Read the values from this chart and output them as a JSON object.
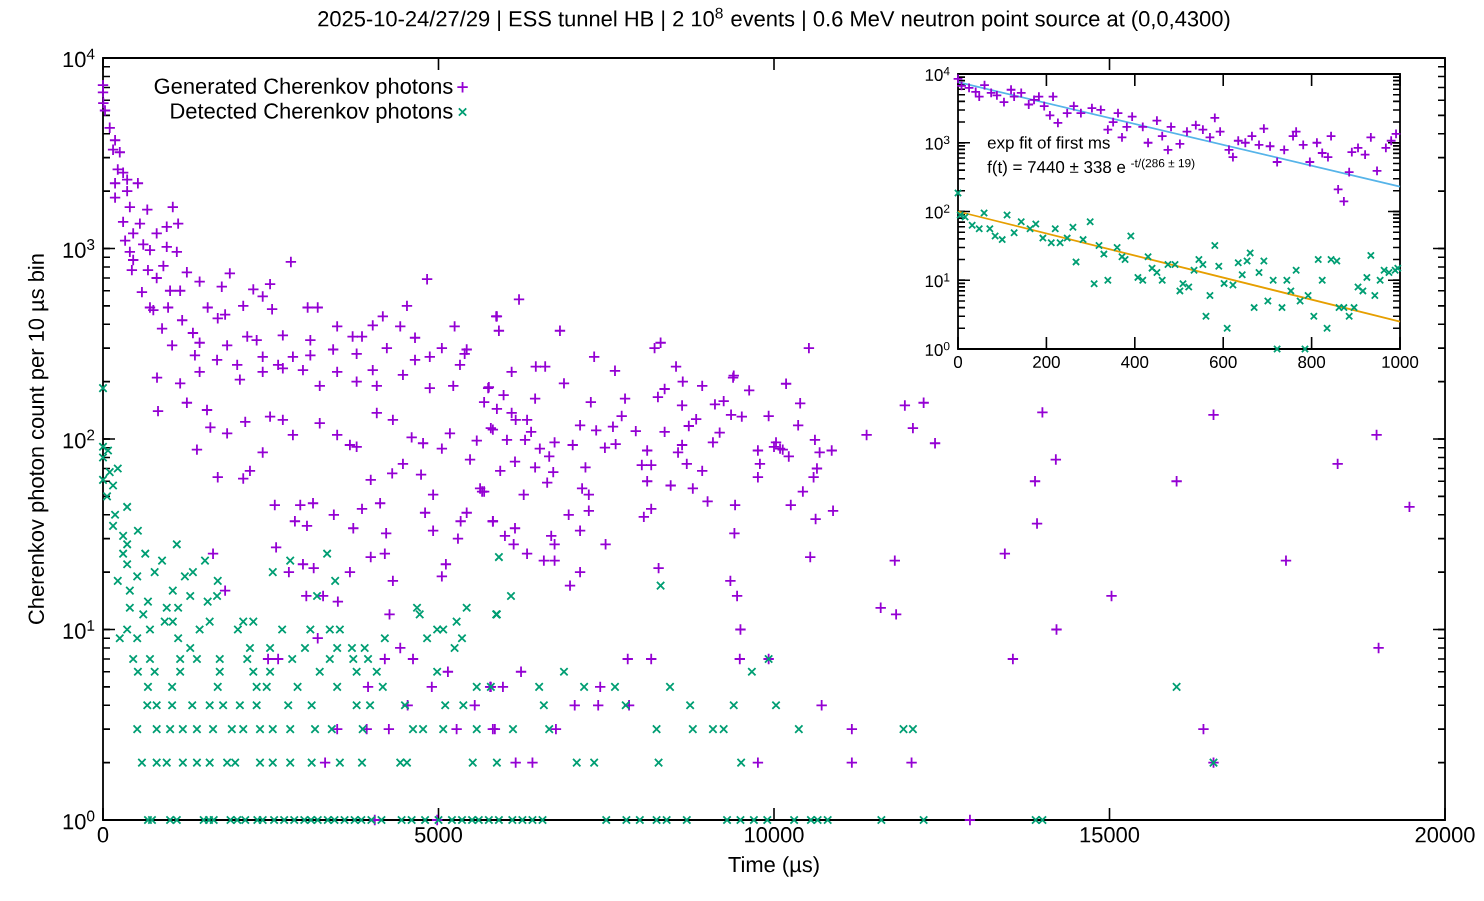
{
  "chart_data": [
    {
      "type": "scatter",
      "title": "2025-10-24/27/29 | ESS tunnel HB | 2 10$^{8}$ events | 0.6 MeV neutron point source at (0,0,4300)",
      "xlabel": "Time (µs)",
      "ylabel": "Cherenkov photon count per 10 µs bin",
      "log": "y",
      "legend": "top left",
      "xlim": [
        0,
        20000
      ],
      "ylim": [
        1,
        10000
      ],
      "xticks": [
        0,
        5000,
        10000,
        15000,
        20000
      ],
      "yticks": [
        {
          "value": 1,
          "label": "10$^{0}$"
        },
        {
          "value": 10,
          "label": "10$^{1}$"
        },
        {
          "value": 100,
          "label": "10$^{2}$"
        },
        {
          "value": 1000,
          "label": "10$^{3}$"
        },
        {
          "value": 10000,
          "label": "10$^{4}$"
        }
      ],
      "series": [
        {
          "name": "Generated Cherenkov photons",
          "color": "#9400d3",
          "marker": "plus",
          "x": [
            0,
            0,
            5,
            30,
            100,
            180,
            150,
            250,
            220,
            300,
            180,
            360,
            520,
            180,
            360,
            400,
            1040,
            660,
            1120,
            300,
            550,
            450,
            950,
            330,
            600,
            800,
            950,
            400,
            1100,
            700,
            450,
            430,
            670,
            900,
            2800,
            1250,
            800,
            1890,
            1440,
            580,
            1000,
            1150,
            2240,
            2490,
            4830,
            700,
            970,
            1560,
            2090,
            3050,
            3200,
            4530,
            750,
            2380,
            1770,
            1180,
            1710,
            2520,
            4170,
            880,
            1340,
            1820,
            2150,
            2290,
            2680,
            3090,
            3490,
            3720,
            3860,
            4020,
            4430,
            4650,
            5240,
            5870,
            1030,
            1440,
            1850,
            4230,
            5050,
            5420,
            1370,
            1700,
            2000,
            2380,
            2610,
            2830,
            3090,
            3430,
            3780,
            4020,
            4650,
            4870,
            5320,
            5390,
            1440,
            2040,
            2380,
            2680,
            2980,
            3230,
            3490,
            3780,
            4080,
            4470,
            4870,
            5220,
            5740,
            805,
            820,
            1150,
            1250,
            1550,
            1600,
            1850,
            2120,
            2490,
            2680,
            2830,
            3230,
            3490,
            3680,
            3780,
            4080,
            4320,
            4600,
            4770,
            5050,
            5170,
            5570,
            5810,
            1400,
            2380,
            1710,
            2090,
            2190,
            2560,
            2940,
            3130,
            2860,
            3040,
            2580,
            2770,
            2980,
            3140,
            3030,
            3280,
            3500,
            3440,
            3680,
            3860,
            3730,
            3990,
            3990,
            4200,
            4220,
            4130,
            4320,
            4310,
            4470,
            4740,
            4800,
            4920,
            4920,
            5110,
            5050,
            5290,
            5330,
            5420,
            5650,
            5810,
            5990,
            1640,
            1820,
            4270,
            4430,
            4620,
            4200,
            5140,
            3200,
            2460,
            2610,
            3950,
            4900,
            5770,
            5960,
            4540,
            5540,
            3490,
            3930,
            4260,
            5270,
            5810,
            3310,
            4050,
            4980,
            5860,
            5900,
            6200,
            6810,
            8220,
            8310,
            10520,
            7320,
            6090,
            6450,
            6590,
            7630,
            6870,
            8540,
            8640,
            9400,
            10180,
            9630,
            8930,
            5750,
            8370,
            5970,
            6440,
            7780,
            8270,
            5680,
            7270,
            10390,
            9120,
            9250,
            5870,
            8630,
            6090,
            7730,
            9360,
            9920,
            6150,
            6320,
            8840,
            9520,
            7110,
            7600,
            8730,
            10360,
            5780,
            6380,
            7350,
            7940,
            8370,
            9190,
            6020,
            6290,
            6730,
            7000,
            7640,
            8630,
            9090,
            10000,
            10610,
            6510,
            8110,
            9760,
            10090,
            10860,
            6650,
            8570,
            10220,
            10130,
            10030,
            10680,
            10640,
            6140,
            8030,
            8170,
            8700,
            9790,
            6440,
            7190,
            5920,
            6710,
            8930,
            8110,
            8460,
            8790,
            9760,
            10590,
            6620,
            7140,
            7240,
            5680,
            6270,
            9010,
            9420,
            10430,
            10250,
            6940,
            7240,
            8060,
            8170,
            10620,
            10880,
            5810,
            6140,
            7110,
            6680,
            6120,
            6730,
            7490,
            6320,
            6570,
            6730,
            7110,
            6960,
            8280,
            10540,
            9350,
            9450,
            9500,
            9490,
            9410,
            7820,
            8170,
            7840,
            9920,
            6230,
            5780,
            7410,
            7030,
            7380,
            10710,
            5840,
            6750,
            11160,
            6150,
            6400,
            9760,
            11160,
            12050,
            11950,
            12230,
            14000,
            16550,
            18980,
            18400,
            14200,
            11380,
            12400,
            12070,
            13890,
            13920,
            16000,
            19470,
            13440,
            17630,
            11800,
            15030,
            11590,
            11820,
            14210,
            19010,
            13560,
            16400,
            16550,
            12920,
            9390,
            7480,
            5470,
            5620
          ],
          "values": [
            7200,
            6600,
            5800,
            5300,
            4300,
            3700,
            3300,
            3200,
            2600,
            2500,
            2200,
            2300,
            2200,
            1850,
            2000,
            1650,
            1650,
            1600,
            1350,
            1380,
            1350,
            1200,
            1300,
            1100,
            1050,
            1200,
            1020,
            960,
            960,
            980,
            870,
            770,
            770,
            810,
            850,
            750,
            700,
            740,
            670,
            590,
            600,
            600,
            610,
            650,
            690,
            490,
            490,
            490,
            500,
            490,
            490,
            500,
            475,
            560,
            630,
            420,
            430,
            480,
            440,
            380,
            360,
            450,
            345,
            330,
            350,
            330,
            390,
            345,
            345,
            395,
            390,
            340,
            390,
            440,
            310,
            320,
            310,
            300,
            300,
            295,
            275,
            260,
            245,
            270,
            245,
            270,
            275,
            295,
            280,
            230,
            260,
            270,
            245,
            280,
            225,
            205,
            225,
            235,
            230,
            190,
            225,
            200,
            190,
            217,
            185,
            190,
            185,
            210,
            140,
            196,
            155,
            142,
            115,
            107,
            123,
            131,
            126,
            105,
            121,
            105,
            93,
            91,
            137,
            126,
            102,
            95,
            89,
            107,
            98,
            112,
            88,
            85,
            63,
            62,
            68,
            45,
            45,
            46,
            37,
            35,
            27,
            20,
            22,
            21,
            15,
            15,
            14,
            40,
            20,
            43,
            34,
            61,
            24,
            25,
            32,
            46,
            18,
            66,
            74,
            65,
            41,
            51,
            33,
            22,
            19,
            30,
            37,
            41,
            53,
            37,
            31,
            25,
            16,
            12,
            8,
            7,
            7,
            6,
            9,
            7,
            7,
            5,
            5,
            5,
            5,
            4,
            4,
            3,
            3,
            3,
            3,
            3,
            2,
            1,
            1,
            440,
            370,
            540,
            370,
            300,
            320,
            300,
            270,
            225,
            240,
            240,
            228,
            196,
            240,
            200,
            215,
            195,
            180,
            190,
            187,
            183,
            170,
            163,
            163,
            166,
            156,
            156,
            154,
            152,
            158,
            144,
            150,
            137,
            132,
            134,
            132,
            126,
            126,
            127,
            131,
            118,
            116,
            117,
            118,
            114,
            109,
            111,
            110,
            109,
            108,
            99,
            99,
            96,
            93,
            94,
            93,
            96,
            91,
            99,
            89,
            87,
            87,
            89,
            87,
            81,
            85,
            81,
            88,
            96,
            85,
            70,
            76,
            73,
            73,
            74,
            74,
            71,
            71,
            68,
            67,
            68,
            60,
            57,
            55,
            63,
            63,
            59,
            55,
            51,
            53,
            51,
            47,
            45,
            53,
            45,
            40,
            42,
            39,
            43,
            38,
            42,
            37,
            34,
            33,
            31,
            28,
            28,
            28,
            25,
            23,
            23,
            20,
            17,
            21,
            24,
            18,
            15,
            10,
            7,
            32,
            7,
            7,
            4,
            7,
            6,
            5,
            5,
            4,
            4,
            4,
            3,
            3,
            3,
            2,
            2,
            2,
            2,
            2,
            150,
            155,
            138,
            134,
            105,
            74,
            78,
            105,
            95,
            114,
            60,
            36,
            60,
            44,
            25,
            23,
            23,
            15,
            13,
            12,
            10,
            8,
            7,
            3,
            2,
            1,
            210,
            90,
            78,
            55
          ]
        },
        {
          "name": "Detected Cherenkov photons",
          "color": "#009e73",
          "marker": "cross",
          "x": [
            0,
            0,
            75,
            0,
            100,
            220,
            0,
            150,
            60,
            360,
            180,
            150,
            520,
            300,
            360,
            1100,
            300,
            630,
            360,
            880,
            1520,
            220,
            510,
            770,
            1220,
            1340,
            1710,
            2530,
            2790,
            3340,
            3460,
            400,
            670,
            1040,
            1300,
            1560,
            1700,
            400,
            600,
            950,
            1120,
            3190,
            360,
            250,
            700,
            920,
            1040,
            1590,
            2090,
            2240,
            2670,
            3090,
            3380,
            3530,
            1440,
            2010,
            510,
            1120,
            1300,
            2190,
            2490,
            3010,
            3490,
            3710,
            3900,
            4200,
            4830,
            5350,
            4980,
            5070,
            5270,
            450,
            700,
            1150,
            1400,
            1740,
            2150,
            2820,
            3380,
            3730,
            3950,
            520,
            770,
            1150,
            1740,
            2240,
            2490,
            3230,
            3780,
            4080,
            4980,
            670,
            1030,
            1710,
            2290,
            2440,
            2900,
            3490,
            4170,
            5570,
            660,
            800,
            1030,
            1330,
            1590,
            1790,
            2040,
            2290,
            2760,
            3110,
            3780,
            3980,
            4500,
            5100,
            5370,
            510,
            800,
            1000,
            1190,
            1400,
            1640,
            1920,
            2090,
            2340,
            2530,
            2790,
            3160,
            3410,
            3870,
            4620,
            4770,
            5070,
            5570,
            580,
            800,
            950,
            1190,
            1400,
            1590,
            1850,
            1970,
            2340,
            2530,
            2790,
            3110,
            3530,
            3860,
            4430,
            4530,
            5510,
            5870,
            5420,
            4680,
            5870,
            4720,
            5240,
            5900,
            6080,
            5860,
            8310,
            6870,
            9670,
            9920,
            5780,
            6500,
            7170,
            7630,
            8450,
            6570,
            7790,
            8750,
            9400,
            10030,
            6110,
            6650,
            8250,
            8790,
            9090,
            9250,
            10370,
            11930,
            12070,
            7060,
            7320,
            8280,
            9510,
            16000,
            16550,
            670,
            730,
            1000,
            1100,
            1500,
            1580,
            1650,
            1900,
            2000,
            2120,
            2300,
            2380,
            2550,
            2700,
            2850,
            3000,
            3100,
            3200,
            3350,
            3450,
            3600,
            3750,
            3850,
            4000,
            4150,
            4450,
            4600,
            4800,
            5000,
            5200,
            5350,
            5500,
            5600,
            5750,
            5900,
            6100,
            6250,
            6400,
            6550,
            7500,
            7800,
            8000,
            8250,
            8400,
            8700,
            9300,
            9500,
            9700,
            9900,
            10300,
            10550,
            10650,
            10800,
            11600,
            12230,
            13900,
            14000
          ],
          "values": [
            185,
            91,
            87,
            80,
            67,
            70,
            61,
            57,
            50,
            44,
            40,
            35,
            33,
            31,
            28,
            28,
            25,
            25,
            22,
            23,
            23,
            18,
            19,
            20,
            19,
            20,
            18,
            20,
            23,
            25,
            18,
            16,
            14,
            16,
            15,
            14,
            15,
            13,
            12,
            13,
            13,
            15,
            10,
            9,
            10,
            11,
            11,
            11,
            11,
            11,
            10,
            10,
            10,
            10,
            10,
            10,
            9,
            9,
            8,
            8,
            8,
            8,
            8,
            8,
            8,
            9,
            9,
            9,
            10,
            10,
            11,
            7,
            7,
            7,
            7,
            7,
            7,
            7,
            7,
            7,
            7,
            6,
            6,
            6,
            6,
            6,
            6,
            6,
            6,
            6,
            6,
            5,
            5,
            5,
            5,
            5,
            5,
            5,
            5,
            5,
            4,
            4,
            4,
            4,
            4,
            4,
            4,
            4,
            4,
            4,
            4,
            4,
            4,
            4,
            4,
            3,
            3,
            3,
            3,
            3,
            3,
            3,
            3,
            3,
            3,
            3,
            3,
            3,
            3,
            3,
            3,
            3,
            3,
            2,
            2,
            2,
            2,
            2,
            2,
            2,
            2,
            2,
            2,
            2,
            2,
            2,
            2,
            2,
            2,
            2,
            2,
            13,
            13,
            12,
            12,
            8,
            24,
            15,
            12,
            17,
            6,
            6,
            7,
            5,
            5,
            5,
            5,
            5,
            4,
            4,
            4,
            4,
            4,
            3,
            3,
            3,
            3,
            3,
            3,
            3,
            3,
            3,
            2,
            2,
            2,
            2,
            5,
            2,
            1,
            1,
            1,
            1,
            1,
            1,
            1,
            1,
            1,
            1,
            1,
            1,
            1,
            1,
            1,
            1,
            1,
            1,
            1,
            1,
            1,
            1,
            1,
            1,
            1,
            1,
            1,
            1,
            1,
            1,
            1,
            1,
            1,
            1,
            1,
            1,
            1,
            1,
            1,
            1,
            1,
            1,
            1,
            1,
            1,
            1,
            1,
            1,
            1,
            1,
            1,
            1,
            1,
            1,
            1,
            1,
            1
          ]
        }
      ]
    },
    {
      "type": "scatter",
      "log": "y",
      "annotations": [
        "exp fit of first ms",
        "f(t) = 7440 ± 338 e $^{-t/(286 ± 19)}$"
      ],
      "xlim": [
        0,
        1000
      ],
      "ylim": [
        1,
        10000
      ],
      "xticks": [
        0,
        200,
        400,
        600,
        800,
        1000
      ],
      "yticks": [
        {
          "value": 1,
          "label": "10$^{0}$"
        },
        {
          "value": 10,
          "label": "10$^{1}$"
        },
        {
          "value": 100,
          "label": "10$^{2}$"
        },
        {
          "value": 1000,
          "label": "10$^{3}$"
        },
        {
          "value": 10000,
          "label": "10$^{4}$"
        }
      ],
      "series": [
        {
          "color": "#9400d3",
          "marker": "plus",
          "x": [
            0,
            8,
            25,
            40,
            48,
            60,
            75,
            88,
            104,
            120,
            127,
            143,
            160,
            172,
            183,
            195,
            208,
            215,
            226,
            247,
            262,
            278,
            303,
            323,
            339,
            351,
            362,
            371,
            382,
            394,
            418,
            430,
            450,
            462,
            475,
            482,
            502,
            518,
            538,
            554,
            570,
            581,
            593,
            613,
            622,
            634,
            650,
            665,
            681,
            692,
            706,
            722,
            738,
            758,
            765,
            781,
            796,
            812,
            824,
            837,
            844,
            860,
            873,
            885,
            891,
            905,
            921,
            934,
            948,
            968,
            980,
            991
          ],
          "values": [
            8500,
            6700,
            6300,
            5500,
            4700,
            6900,
            5300,
            4900,
            3900,
            5900,
            4700,
            5300,
            3600,
            4200,
            4700,
            3400,
            2500,
            4700,
            1950,
            2700,
            3400,
            2700,
            3200,
            3000,
            1550,
            2000,
            2700,
            1200,
            1700,
            2400,
            1700,
            1000,
            2100,
            1250,
            790,
            1700,
            960,
            1450,
            1800,
            1550,
            1200,
            2300,
            1450,
            790,
            620,
            1070,
            1000,
            1250,
            930,
            1600,
            890,
            525,
            790,
            1250,
            1450,
            930,
            525,
            1000,
            710,
            620,
            1250,
            210,
            140,
            375,
            730,
            840,
            670,
            1200,
            390,
            840,
            1070,
            1350
          ]
        },
        {
          "color": "#009e73",
          "marker": "cross",
          "x": [
            0,
            5,
            16,
            32,
            48,
            59,
            72,
            84,
            100,
            111,
            127,
            143,
            163,
            176,
            192,
            211,
            220,
            231,
            247,
            260,
            267,
            283,
            299,
            308,
            319,
            330,
            339,
            360,
            371,
            378,
            391,
            407,
            418,
            430,
            439,
            450,
            462,
            475,
            491,
            502,
            509,
            522,
            534,
            545,
            554,
            561,
            570,
            581,
            590,
            602,
            609,
            622,
            634,
            643,
            654,
            661,
            670,
            681,
            692,
            701,
            713,
            722,
            733,
            744,
            753,
            765,
            774,
            785,
            792,
            805,
            815,
            824,
            835,
            844,
            857,
            862,
            873,
            885,
            896,
            905,
            916,
            925,
            934,
            943,
            955,
            964,
            975,
            989,
            995
          ],
          "values": [
            186,
            89,
            83,
            63,
            56,
            95,
            56,
            44,
            39,
            89,
            49,
            71,
            56,
            66,
            41,
            35,
            56,
            35,
            41,
            59,
            18.5,
            39,
            71,
            8.9,
            32,
            24,
            10,
            30,
            22,
            20,
            44,
            11,
            10,
            22,
            15,
            13,
            10,
            17,
            17,
            7,
            8.9,
            8,
            14,
            20,
            17,
            3,
            6,
            32,
            16,
            9,
            2,
            8.5,
            18,
            12,
            19,
            25,
            4,
            13,
            19,
            5,
            10,
            1,
            4,
            10,
            7,
            14,
            5,
            1,
            6,
            3,
            20,
            10,
            2,
            20,
            19,
            4,
            4,
            3,
            4,
            8,
            7,
            11,
            23,
            6,
            10,
            14,
            13,
            14,
            15
          ]
        },
        {
          "type": "line",
          "color": "#56b4e9",
          "x": [
            0,
            1000
          ],
          "values": [
            7600,
            230
          ]
        },
        {
          "type": "line",
          "color": "#e69f00",
          "x": [
            0,
            1000
          ],
          "values": [
            100,
            2.5
          ]
        }
      ]
    }
  ]
}
